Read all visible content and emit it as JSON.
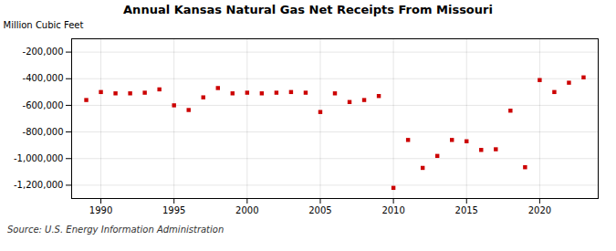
{
  "chart_data": {
    "type": "scatter",
    "title": "Annual Kansas Natural Gas Net Receipts From Missouri",
    "ylabel": "Million Cubic Feet",
    "annotations": [
      "Source: U.S. Energy Information Administration"
    ],
    "x": [
      1989,
      1990,
      1991,
      1992,
      1993,
      1994,
      1995,
      1996,
      1997,
      1998,
      1999,
      2000,
      2001,
      2002,
      2003,
      2004,
      2005,
      2006,
      2007,
      2008,
      2009,
      2010,
      2011,
      2012,
      2013,
      2014,
      2015,
      2016,
      2017,
      2018,
      2019,
      2020,
      2021,
      2022,
      2023
    ],
    "values": [
      -560000,
      -500000,
      -510000,
      -510000,
      -505000,
      -480000,
      -600000,
      -635000,
      -540000,
      -470000,
      -510000,
      -505000,
      -510000,
      -505000,
      -500000,
      -505000,
      -650000,
      -510000,
      -575000,
      -560000,
      -530000,
      -1220000,
      -860000,
      -1070000,
      -980000,
      -860000,
      -870000,
      -935000,
      -930000,
      -640000,
      -1065000,
      -410000,
      -500000,
      -430000,
      -390000
    ],
    "color": "#cc0000",
    "marker": "square",
    "grid": true,
    "xlim": [
      1988.0,
      2024.0
    ],
    "xticks": [
      1990,
      1995,
      2000,
      2005,
      2010,
      2015,
      2020
    ],
    "ylim": [
      -1300000,
      -100000
    ],
    "yticks": [
      {
        "value": -200000,
        "label": "-200,000"
      },
      {
        "value": -400000,
        "label": "-400,000"
      },
      {
        "value": -600000,
        "label": "-600,000"
      },
      {
        "value": -800000,
        "label": "-800,000"
      },
      {
        "value": -1000000,
        "label": "-1,000,000"
      },
      {
        "value": -1200000,
        "label": "-1,200,000"
      }
    ]
  }
}
